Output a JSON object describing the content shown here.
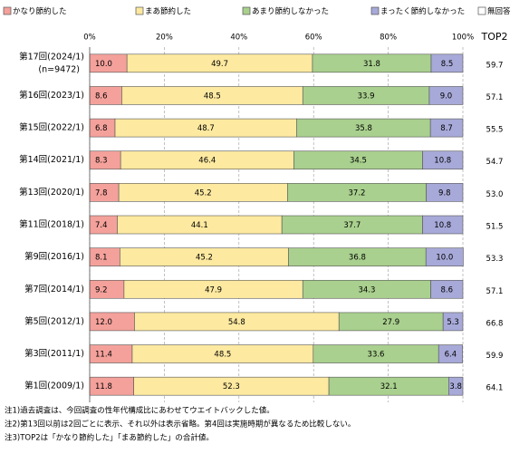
{
  "chart_data": {
    "type": "stacked-bar-horizontal",
    "categories": [
      "第17回(2024/1)",
      "第16回(2023/1)",
      "第15回(2022/1)",
      "第14回(2021/1)",
      "第13回(2020/1)",
      "第11回(2018/1)",
      "第9回(2016/1)",
      "第7回(2014/1)",
      "第5回(2012/1)",
      "第3回(2011/1)",
      "第1回(2009/1)"
    ],
    "category_note": "(n=9472)",
    "series": [
      {
        "name": "かなり節約した",
        "color": "#f4a19b",
        "values": [
          10.0,
          8.6,
          6.8,
          8.3,
          7.8,
          7.4,
          8.1,
          9.2,
          12.0,
          11.4,
          11.8
        ],
        "value_labels": [
          "10.0",
          "8.6",
          "6.8",
          "8.3",
          "7.8",
          "7.4",
          "8.1",
          "9.2",
          "12.0",
          "11.4",
          "11.8"
        ]
      },
      {
        "name": "まあ節約した",
        "color": "#fde9a0",
        "values": [
          49.7,
          48.5,
          48.7,
          46.4,
          45.2,
          44.1,
          45.2,
          47.9,
          54.8,
          48.5,
          52.3
        ],
        "value_labels": [
          "49.7",
          "48.5",
          "48.7",
          "46.4",
          "45.2",
          "44.1",
          "45.2",
          "47.9",
          "54.8",
          "48.5",
          "52.3"
        ]
      },
      {
        "name": "あまり節約しなかった",
        "color": "#a9d08e",
        "values": [
          31.8,
          33.9,
          35.8,
          34.5,
          37.2,
          37.7,
          36.8,
          34.3,
          27.9,
          33.6,
          32.1
        ],
        "value_labels": [
          "31.8",
          "33.9",
          "35.8",
          "34.5",
          "37.2",
          "37.7",
          "36.8",
          "34.3",
          "27.9",
          "33.6",
          "32.1"
        ]
      },
      {
        "name": "まったく節約しなかった",
        "color": "#a7a9d8",
        "values": [
          8.5,
          9.0,
          8.7,
          10.8,
          9.8,
          10.8,
          10.0,
          8.6,
          5.3,
          6.4,
          3.8
        ],
        "value_labels": [
          "8.5",
          "9.0",
          "8.7",
          "10.8",
          "9.8",
          "10.8",
          "10.0",
          "8.6",
          "5.3",
          "6.4",
          "3.8"
        ]
      },
      {
        "name": "無回答",
        "color": "#ffffff",
        "values": [
          0,
          0,
          0,
          0,
          0,
          0,
          0,
          0,
          0,
          0,
          0
        ]
      }
    ],
    "top2": {
      "label": "TOP2",
      "values": [
        59.7,
        57.1,
        55.5,
        54.7,
        53.0,
        51.5,
        53.3,
        57.1,
        66.8,
        59.9,
        64.1
      ],
      "value_labels": [
        "59.7",
        "57.1",
        "55.5",
        "54.7",
        "53.0",
        "51.5",
        "53.3",
        "57.1",
        "66.8",
        "59.9",
        "64.1"
      ]
    },
    "xlim": [
      0,
      100
    ],
    "xticks": [
      {
        "value": 0,
        "label": "0%"
      },
      {
        "value": 20,
        "label": "20%"
      },
      {
        "value": 40,
        "label": "40%"
      },
      {
        "value": 60,
        "label": "60%"
      },
      {
        "value": 80,
        "label": "80%"
      },
      {
        "value": 100,
        "label": "100%"
      }
    ],
    "grid": true,
    "notes": [
      "注1)過去調査は、今回調査の性年代構成比にあわせてウエイトバックした値。",
      "注2)第13回以前は2回ごとに表示、それ以外は表示省略。第4回は実施時期が異なるため比較しない。",
      "注3)TOP2は「かなり節約した」「まあ節約した」の合計値。"
    ]
  }
}
